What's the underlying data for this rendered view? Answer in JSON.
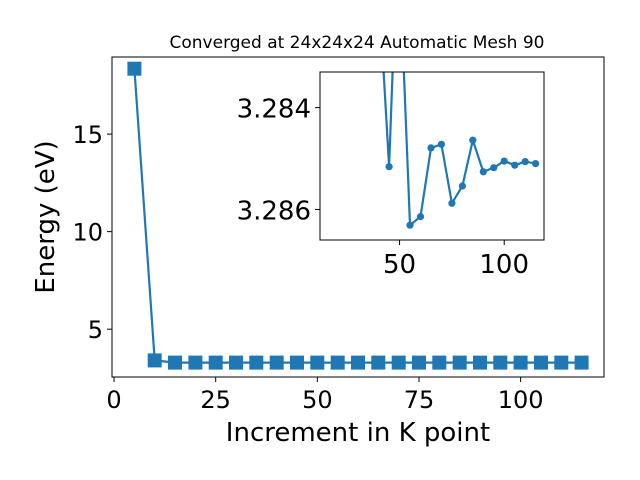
{
  "chart_data": [
    {
      "type": "line",
      "title": "Converged at 24x24x24 Automatic Mesh 90",
      "xlabel": "Increment in K point",
      "ylabel": "Energy (eV)",
      "xlim": [
        -0.5,
        120.5
      ],
      "ylim": [
        2.55,
        18.95
      ],
      "xticks": [
        0,
        25,
        50,
        75,
        100
      ],
      "yticks": [
        5,
        10,
        15
      ],
      "marker": "square",
      "color": "#1f77b4",
      "grid": false,
      "series": [
        {
          "x": [
            5,
            10,
            15,
            20,
            25,
            30,
            35,
            40,
            45,
            50,
            55,
            60,
            65,
            70,
            75,
            80,
            85,
            90,
            95,
            100,
            105,
            110,
            115
          ],
          "y": [
            18.35,
            3.4,
            3.29,
            3.286,
            3.286,
            3.286,
            3.286,
            3.286,
            3.286,
            3.286,
            3.286,
            3.286,
            3.286,
            3.286,
            3.286,
            3.286,
            3.286,
            3.286,
            3.286,
            3.286,
            3.286,
            3.286,
            3.286
          ]
        }
      ]
    },
    {
      "type": "line",
      "title": "",
      "xlabel": "",
      "ylabel": "",
      "inverted_y": true,
      "xlim": [
        12,
        119
      ],
      "ylim": [
        3.2833,
        3.2866
      ],
      "xticks": [
        50,
        100
      ],
      "yticks": [
        3.284,
        3.286
      ],
      "yticklabels": [
        "3.284",
        "3.286"
      ],
      "marker": "circle",
      "color": "#1f77b4",
      "grid": false,
      "series": [
        {
          "x": [
            40,
            45,
            48,
            50,
            55,
            60,
            65,
            70,
            75,
            80,
            85,
            90,
            95,
            100,
            105,
            110,
            115
          ],
          "y": [
            3.2816,
            3.28516,
            3.2818,
            3.2812,
            3.28631,
            3.28614,
            3.28479,
            3.28472,
            3.28588,
            3.28554,
            3.28464,
            3.28526,
            3.28518,
            3.28505,
            3.28513,
            3.28506,
            3.2851
          ]
        }
      ]
    }
  ]
}
